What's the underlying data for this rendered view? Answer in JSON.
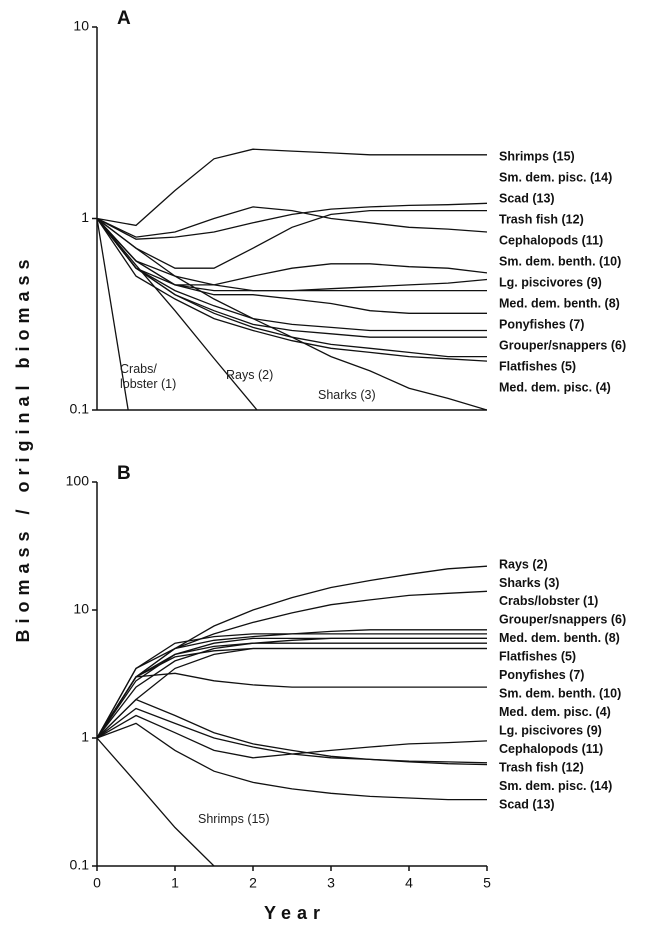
{
  "ylabel": "Biomass / original biomass",
  "chart_data": [
    {
      "type": "line",
      "title": "A",
      "log_y": true,
      "xlim": [
        0,
        5
      ],
      "ylim": [
        0.1,
        10
      ],
      "yticks": [
        0.1,
        1,
        10
      ],
      "x": [
        0,
        0.5,
        1,
        1.5,
        2,
        2.5,
        3,
        3.5,
        4,
        4.5,
        5
      ],
      "series": [
        {
          "name": "Shrimps (15)",
          "color": "#111111",
          "values": [
            1,
            0.92,
            1.4,
            2.05,
            2.3,
            2.25,
            2.2,
            2.15,
            2.15,
            2.15,
            2.15
          ]
        },
        {
          "name": "Sm. dem. pisc. (14)",
          "color": "#111111",
          "values": [
            1,
            0.78,
            0.8,
            0.85,
            0.95,
            1.05,
            1.12,
            1.15,
            1.17,
            1.18,
            1.2
          ]
        },
        {
          "name": "Scad (13)",
          "color": "#111111",
          "values": [
            1,
            0.7,
            0.55,
            0.55,
            0.7,
            0.9,
            1.05,
            1.1,
            1.1,
            1.1,
            1.1
          ]
        },
        {
          "name": "Trash fish (12)",
          "color": "#111111",
          "values": [
            1,
            0.8,
            0.85,
            1.0,
            1.15,
            1.1,
            1.0,
            0.95,
            0.9,
            0.88,
            0.85
          ]
        },
        {
          "name": "Cephalopods (11)",
          "color": "#111111",
          "values": [
            1,
            0.6,
            0.45,
            0.45,
            0.5,
            0.55,
            0.58,
            0.58,
            0.56,
            0.55,
            0.52
          ]
        },
        {
          "name": "Sm. dem. benth. (10)",
          "color": "#111111",
          "values": [
            1,
            0.6,
            0.5,
            0.45,
            0.42,
            0.42,
            0.43,
            0.44,
            0.45,
            0.46,
            0.48
          ]
        },
        {
          "name": "Lg. piscivores (9)",
          "color": "#111111",
          "values": [
            1,
            0.55,
            0.45,
            0.42,
            0.42,
            0.42,
            0.42,
            0.42,
            0.42,
            0.42,
            0.42
          ]
        },
        {
          "name": "Med. dem. benth. (8)",
          "color": "#111111",
          "values": [
            1,
            0.6,
            0.45,
            0.4,
            0.4,
            0.38,
            0.36,
            0.33,
            0.32,
            0.32,
            0.32
          ]
        },
        {
          "name": "Ponyfishes (7)",
          "color": "#111111",
          "values": [
            1,
            0.55,
            0.42,
            0.35,
            0.3,
            0.28,
            0.27,
            0.26,
            0.26,
            0.26,
            0.26
          ]
        },
        {
          "name": "Grouper/snappers (6)",
          "color": "#111111",
          "values": [
            1,
            0.55,
            0.4,
            0.33,
            0.28,
            0.26,
            0.25,
            0.24,
            0.24,
            0.24,
            0.24
          ]
        },
        {
          "name": "Flatfishes (5)",
          "color": "#111111",
          "values": [
            1,
            0.55,
            0.4,
            0.32,
            0.27,
            0.24,
            0.22,
            0.21,
            0.2,
            0.19,
            0.19
          ]
        },
        {
          "name": "Med. dem. pisc. (4)",
          "color": "#111111",
          "values": [
            1,
            0.5,
            0.38,
            0.3,
            0.26,
            0.23,
            0.21,
            0.2,
            0.19,
            0.185,
            0.18
          ]
        },
        {
          "name": "Crabs/ lobster (1)",
          "color": "#111111",
          "values": [
            1,
            0.056,
            null,
            null,
            null,
            null,
            null,
            null,
            null,
            null,
            null
          ]
        },
        {
          "name": "Rays (2)",
          "color": "#111111",
          "values": [
            1,
            0.57,
            0.33,
            0.186,
            0.106,
            0.06,
            null,
            null,
            null,
            null,
            null
          ]
        },
        {
          "name": "Sharks (3)",
          "color": "#111111",
          "values": [
            1,
            0.7,
            0.5,
            0.38,
            0.3,
            0.24,
            0.19,
            0.16,
            0.13,
            0.115,
            0.1
          ]
        }
      ]
    },
    {
      "type": "line",
      "title": "B",
      "log_y": true,
      "xlim": [
        0,
        5
      ],
      "ylim": [
        0.1,
        100
      ],
      "yticks": [
        0.1,
        1,
        10,
        100
      ],
      "xticks": [
        0,
        1,
        2,
        3,
        4,
        5
      ],
      "xlabel": "Year",
      "x": [
        0,
        0.5,
        1,
        1.5,
        2,
        2.5,
        3,
        3.5,
        4,
        4.5,
        5
      ],
      "series": [
        {
          "name": "Rays (2)",
          "color": "#111111",
          "values": [
            1,
            3,
            5,
            7.5,
            10,
            12.5,
            15,
            17,
            19,
            21,
            22
          ]
        },
        {
          "name": "Sharks (3)",
          "color": "#111111",
          "values": [
            1,
            3,
            5,
            6.5,
            8,
            9.5,
            11,
            12,
            13,
            13.5,
            14
          ]
        },
        {
          "name": "Crabs/lobster (1)",
          "color": "#111111",
          "values": [
            1,
            3.5,
            5,
            5.8,
            6.2,
            6.5,
            6.8,
            7,
            7,
            7,
            7
          ]
        },
        {
          "name": "Grouper/snappers (6)",
          "color": "#111111",
          "values": [
            1,
            3.5,
            5.5,
            6.2,
            6.5,
            6.5,
            6.5,
            6.5,
            6.5,
            6.5,
            6.5
          ]
        },
        {
          "name": "Med. dem. benth. (8)",
          "color": "#111111",
          "values": [
            1,
            3,
            4.5,
            5.5,
            6,
            6,
            6,
            6,
            6,
            6,
            6
          ]
        },
        {
          "name": "Flatfishes (5)",
          "color": "#111111",
          "values": [
            1,
            3,
            4.3,
            4.8,
            5,
            5,
            5,
            5,
            5,
            5,
            5
          ]
        },
        {
          "name": "Ponyfishes (7)",
          "color": "#111111",
          "values": [
            1,
            3,
            3.2,
            2.8,
            2.6,
            2.5,
            2.5,
            2.5,
            2.5,
            2.5,
            2.5
          ]
        },
        {
          "name": "Sm. dem. benth. (10)",
          "color": "#111111",
          "values": [
            1,
            2.5,
            4,
            5,
            5.5,
            5.5,
            5.5,
            5.5,
            5.5,
            5.5,
            5.5
          ]
        },
        {
          "name": "Med. dem. pisc. (4)",
          "color": "#111111",
          "values": [
            1,
            2.8,
            4.5,
            5.2,
            5.5,
            5.8,
            6,
            6,
            6,
            6,
            6
          ]
        },
        {
          "name": "Lg. piscivores (9)",
          "color": "#111111",
          "values": [
            1,
            2,
            3.5,
            4.5,
            5,
            5,
            5,
            5,
            5,
            5,
            5
          ]
        },
        {
          "name": "Cephalopods (11)",
          "color": "#111111",
          "values": [
            1,
            1.5,
            1.1,
            0.8,
            0.7,
            0.75,
            0.8,
            0.85,
            0.9,
            0.92,
            0.95
          ]
        },
        {
          "name": "Trash fish (12)",
          "color": "#111111",
          "values": [
            1,
            2,
            1.5,
            1.1,
            0.9,
            0.8,
            0.72,
            0.68,
            0.65,
            0.63,
            0.62
          ]
        },
        {
          "name": "Sm. dem. pisc. (14)",
          "color": "#111111",
          "values": [
            1,
            1.7,
            1.3,
            1.0,
            0.85,
            0.75,
            0.7,
            0.68,
            0.66,
            0.65,
            0.64
          ]
        },
        {
          "name": "Scad (13)",
          "color": "#111111",
          "values": [
            1,
            1.3,
            0.8,
            0.55,
            0.45,
            0.4,
            0.37,
            0.35,
            0.34,
            0.33,
            0.33
          ]
        },
        {
          "name": "Shrimps (15)",
          "color": "#111111",
          "values": [
            1,
            0.45,
            0.2,
            0.1,
            0.05,
            null,
            null,
            null,
            null,
            null,
            null
          ]
        }
      ]
    }
  ]
}
